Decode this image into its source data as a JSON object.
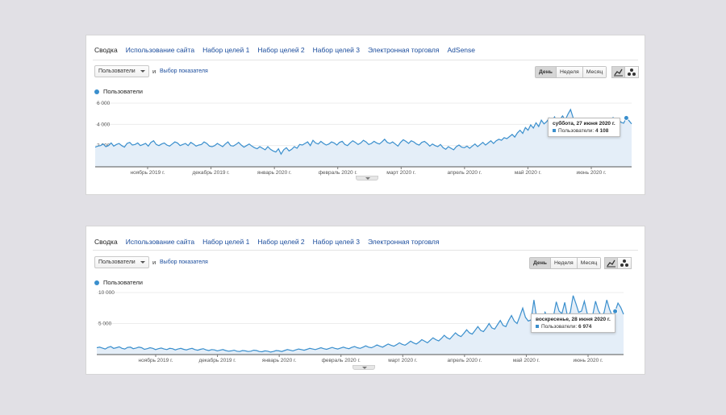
{
  "colors": {
    "line": "#3a8fcd",
    "fill": "#e4eef8",
    "accent_link": "#1a4c9c"
  },
  "panel1": {
    "tabs": [
      "Сводка",
      "Использование сайта",
      "Набор целей 1",
      "Набор целей 2",
      "Набор целей 3",
      "Электронная торговля",
      "AdSense"
    ],
    "metric_select": "Пользователи",
    "and": "и",
    "choose_metric": "Выбор показателя",
    "period_buttons": [
      "День",
      "Неделя",
      "Месяц"
    ],
    "active_period": "День",
    "view_icons": [
      "line-chart-icon",
      "motion-chart-icon"
    ],
    "legend": "Пользователи",
    "tooltip": {
      "date": "суббота, 27 июня 2020 г.",
      "label": "Пользователи:",
      "value": "4 108"
    }
  },
  "panel2": {
    "tabs": [
      "Сводка",
      "Использование сайта",
      "Набор целей 1",
      "Набор целей 2",
      "Набор целей 3",
      "Электронная торговля"
    ],
    "metric_select": "Пользователи",
    "and": "и",
    "choose_metric": "Выбор показателя",
    "period_buttons": [
      "День",
      "Неделя",
      "Месяц"
    ],
    "active_period": "День",
    "view_icons": [
      "line-chart-icon",
      "motion-chart-icon"
    ],
    "legend": "Пользователи",
    "tooltip": {
      "date": "воскресенье, 28 июня 2020 г.",
      "label": "Пользователи:",
      "value": "6 974"
    }
  },
  "chart_data": [
    {
      "type": "area",
      "series": [
        {
          "name": "Пользователи",
          "values": [
            1850,
            1950,
            2000,
            2150,
            1900,
            2000,
            2250,
            1950,
            2100,
            2200,
            2000,
            1850,
            2200,
            2300,
            2050,
            2100,
            2250,
            2000,
            2100,
            2200,
            1950,
            2300,
            2450,
            2100,
            2000,
            2150,
            2250,
            2050,
            1950,
            2150,
            2350,
            2250,
            2000,
            2100,
            2200,
            2000,
            2300,
            2150,
            1950,
            2050,
            2100,
            2350,
            2200,
            1950,
            1900,
            2000,
            2200,
            2050,
            1900,
            2150,
            2350,
            2000,
            1950,
            2100,
            2300,
            2050,
            1850,
            2000,
            2150,
            1950,
            1800,
            1700,
            1900,
            1750,
            1600,
            1900,
            1650,
            1500,
            1400,
            1700,
            1200,
            1600,
            1800,
            1500,
            1650,
            1900,
            1750,
            2100,
            2050,
            2200,
            2350,
            2000,
            2500,
            2250,
            2150,
            2400,
            2200,
            2050,
            2150,
            2350,
            2250,
            2050,
            2300,
            2400,
            2100,
            2000,
            2250,
            2450,
            2300,
            2100,
            2250,
            2500,
            2350,
            2100,
            2200,
            2400,
            2250,
            2150,
            2350,
            2600,
            2300,
            2200,
            2350,
            2150,
            1950,
            2300,
            2550,
            2400,
            2200,
            2450,
            2350,
            2150,
            2050,
            2300,
            2400,
            2200,
            1950,
            2150,
            2000,
            1900,
            2100,
            1800,
            1650,
            1900,
            1750,
            1600,
            1900,
            2050,
            1850,
            1800,
            1950,
            1750,
            1950,
            2150,
            1900,
            2100,
            2300,
            2050,
            2250,
            2450,
            2200,
            2450,
            2600,
            2500,
            2750,
            2650,
            2850,
            3050,
            2800,
            3200,
            3450,
            3150,
            3700,
            3450,
            3950,
            3650,
            4150,
            3800,
            4400,
            4050,
            4250,
            4600,
            4350,
            4700,
            4100,
            4450,
            4800,
            4400,
            4950,
            5400,
            4600,
            4250,
            4150,
            3950,
            4100,
            3700,
            3900,
            4300,
            4050,
            4500,
            4100,
            3800,
            4000,
            3850,
            4350,
            4650,
            4300,
            4450,
            4200,
            4108,
            4600,
            4350,
            4050
          ],
          "color": "#3a8fcd"
        }
      ],
      "x_tick_labels": [
        "ноябрь 2019 г.",
        "декабрь 2019 г.",
        "январь 2020 г.",
        "февраль 2020 г.",
        "март 2020 г.",
        "апрель 2020 г.",
        "май 2020 г.",
        "июнь 2020 г."
      ],
      "y_tick_labels": [
        "2 000",
        "4 000",
        "6 000"
      ],
      "y_ticks": [
        2000,
        4000,
        6000
      ],
      "ylim": [
        0,
        6000
      ]
    },
    {
      "type": "area",
      "series": [
        {
          "name": "Пользователи",
          "values": [
            1100,
            1200,
            1050,
            900,
            1150,
            1300,
            1000,
            1100,
            1250,
            1000,
            900,
            1150,
            1200,
            950,
            1050,
            1200,
            1100,
            850,
            950,
            1100,
            1000,
            800,
            950,
            1050,
            900,
            800,
            1000,
            950,
            750,
            900,
            1000,
            850,
            750,
            900,
            1000,
            800,
            700,
            850,
            950,
            750,
            650,
            800,
            750,
            600,
            700,
            800,
            650,
            550,
            600,
            700,
            550,
            500,
            650,
            600,
            500,
            550,
            700,
            650,
            500,
            450,
            600,
            550,
            400,
            500,
            650,
            600,
            500,
            650,
            800,
            700,
            600,
            750,
            900,
            800,
            700,
            850,
            1000,
            900,
            800,
            950,
            1100,
            950,
            850,
            1000,
            1150,
            1000,
            900,
            1050,
            1200,
            1050,
            950,
            1150,
            1300,
            1100,
            1000,
            1200,
            1400,
            1200,
            1100,
            1300,
            1550,
            1350,
            1200,
            1450,
            1700,
            1500,
            1350,
            1600,
            1900,
            1650,
            1500,
            1800,
            2150,
            1900,
            1700,
            2000,
            2400,
            2150,
            1900,
            2300,
            2700,
            2400,
            2200,
            2600,
            3100,
            2700,
            2500,
            3000,
            3500,
            3100,
            2900,
            3400,
            4000,
            3500,
            3300,
            3900,
            4500,
            3900,
            3700,
            4300,
            5000,
            4300,
            4100,
            4800,
            5500,
            4700,
            4500,
            5500,
            6300,
            5400,
            5000,
            6200,
            7500,
            6000,
            5400,
            5600,
            8800,
            5900,
            5200,
            5000,
            6800,
            5800,
            5600,
            6200,
            8500,
            7000,
            6600,
            8400,
            6200,
            6800,
            9500,
            8200,
            6800,
            7000,
            8600,
            6700,
            5600,
            6400,
            8600,
            7100,
            6300,
            6700,
            8800,
            7300,
            6200,
            6974,
            8300,
            7600,
            6500
          ],
          "color": "#3a8fcd"
        }
      ],
      "x_tick_labels": [
        "ноябрь 2019 г.",
        "декабрь 2019 г.",
        "январь 2020 г.",
        "февраль 2020 г.",
        "март 2020 г.",
        "апрель 2020 г.",
        "май 2020 г.",
        "июнь 2020 г."
      ],
      "y_tick_labels": [
        "5 000",
        "10 000"
      ],
      "y_ticks": [
        5000,
        10000
      ],
      "ylim": [
        0,
        10000
      ]
    }
  ]
}
